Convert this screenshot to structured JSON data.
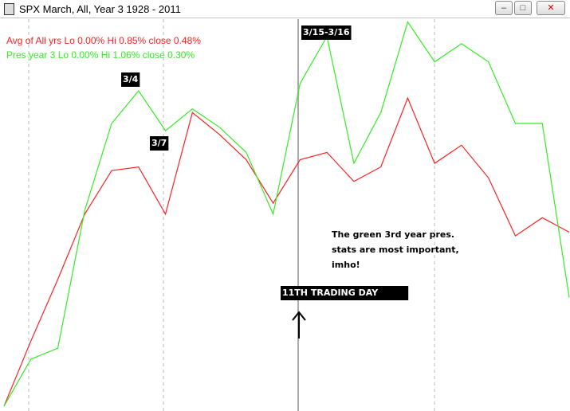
{
  "chart_data": {
    "type": "line",
    "title": "SPX March,  All,  Year 3   1928 -  2011",
    "categories": [
      null,
      null,
      null,
      null,
      null,
      null,
      null,
      null,
      null,
      null,
      null,
      null,
      null,
      null,
      null,
      null,
      null,
      null,
      null,
      null,
      null,
      null
    ],
    "series": [
      {
        "name": "Avg of All yrs  Lo 0.00%  Hi 0.85%  close 0.48%",
        "color": "#ff2020",
        "values": [
          0,
          0.18,
          0.35,
          0.53,
          0.65,
          0.66,
          0.53,
          0.81,
          0.75,
          0.68,
          0.56,
          0.68,
          0.7,
          0.62,
          0.66,
          0.85,
          0.67,
          0.72,
          0.63,
          0.47,
          0.52,
          0.48
        ]
      },
      {
        "name": "Pres year 3  Lo 0.00%  Hi 1.06%  close 0.30%",
        "color": "#33ee22",
        "values": [
          0,
          0.13,
          0.16,
          0.54,
          0.78,
          0.87,
          0.76,
          0.82,
          0.77,
          0.7,
          0.53,
          0.89,
          1.02,
          0.67,
          0.81,
          1.06,
          0.95,
          1.0,
          0.95,
          0.78,
          0.78,
          0.3
        ]
      }
    ],
    "ylim": [
      0,
      1.07
    ],
    "annotations": [
      "3/4",
      "3/7",
      "3/15-3/16",
      "11TH TRADING DAY"
    ],
    "note": [
      "The green 3rd year pres.",
      "stats are most important,",
      "imho!"
    ]
  }
}
